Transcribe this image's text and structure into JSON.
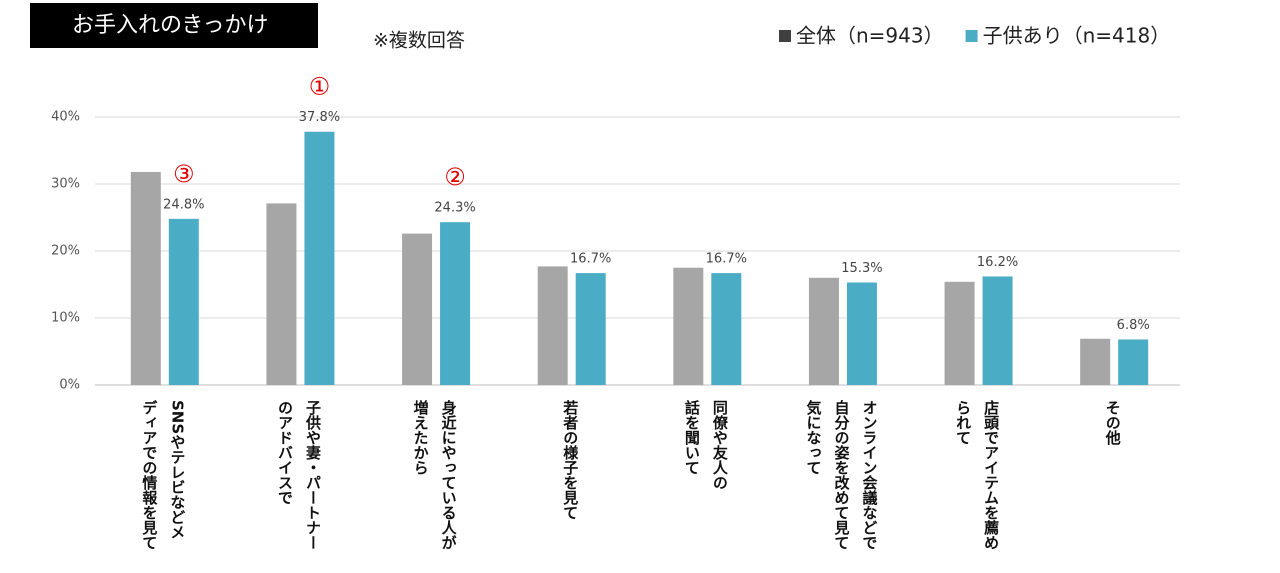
{
  "chart_data": {
    "type": "bar",
    "title": "お手入れのきっかけ",
    "subtitle": "※複数回答",
    "categories": [
      [
        "SNSやテレビなどメ",
        "ディアでの情報を見て"
      ],
      [
        "子供や妻・パートナー",
        "のアドバイスで"
      ],
      [
        "身近にやっている人が",
        "増えたから"
      ],
      [
        "若者の様子を見て"
      ],
      [
        "同僚や友人の",
        "話を聞いて"
      ],
      [
        "オンライン会議などで",
        "自分の姿を改めて見て",
        "気になって"
      ],
      [
        "店頭でアイテムを薦め",
        "られて"
      ],
      [
        "その他"
      ]
    ],
    "series": [
      {
        "name": "全体（n=943）",
        "color": "#a6a6a6",
        "values": [
          31.8,
          27.1,
          22.6,
          17.7,
          17.5,
          16.0,
          15.4,
          6.9
        ]
      },
      {
        "name": "子供あり（n=418）",
        "color": "#4bacc6",
        "values": [
          24.8,
          37.8,
          24.3,
          16.7,
          16.7,
          15.3,
          16.2,
          6.8
        ],
        "value_labels": [
          "24.8%",
          "37.8%",
          "24.3%",
          "16.7%",
          "16.7%",
          "15.3%",
          "16.2%",
          "6.8%"
        ]
      }
    ],
    "annotations": [
      {
        "text": "①",
        "category": 1
      },
      {
        "text": "②",
        "category": 2
      },
      {
        "text": "③",
        "category": 0
      }
    ],
    "ylim": [
      0,
      40
    ],
    "yticks": [
      {
        "value": 0,
        "label": "0%"
      },
      {
        "value": 10,
        "label": "10%"
      },
      {
        "value": 20,
        "label": "20%"
      },
      {
        "value": 30,
        "label": "30%"
      },
      {
        "value": 40,
        "label": "40%"
      }
    ],
    "grid": true,
    "legend": "top-right"
  }
}
